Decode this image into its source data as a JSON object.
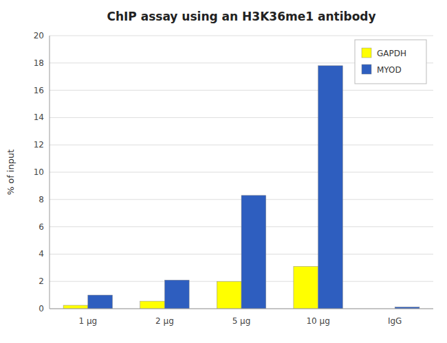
{
  "chart_data": {
    "type": "bar",
    "title": "ChIP assay using an H3K36me1 antibody",
    "ylabel": "% of input",
    "categories": [
      "1 μg",
      "2 μg",
      "5 μg",
      "10 μg",
      "IgG"
    ],
    "series": [
      {
        "name": "GAPDH",
        "color": "#FFFF00",
        "values": [
          0.25,
          0.55,
          2.0,
          3.1,
          0.0
        ]
      },
      {
        "name": "MYOD",
        "color": "#2E5EBF",
        "values": [
          1.0,
          2.1,
          8.3,
          17.8,
          0.12
        ]
      }
    ],
    "ylim": [
      0,
      20
    ],
    "yticks": [
      0,
      2,
      4,
      6,
      8,
      10,
      12,
      14,
      16,
      18,
      20
    ],
    "grid": true,
    "legend": "upper right"
  }
}
